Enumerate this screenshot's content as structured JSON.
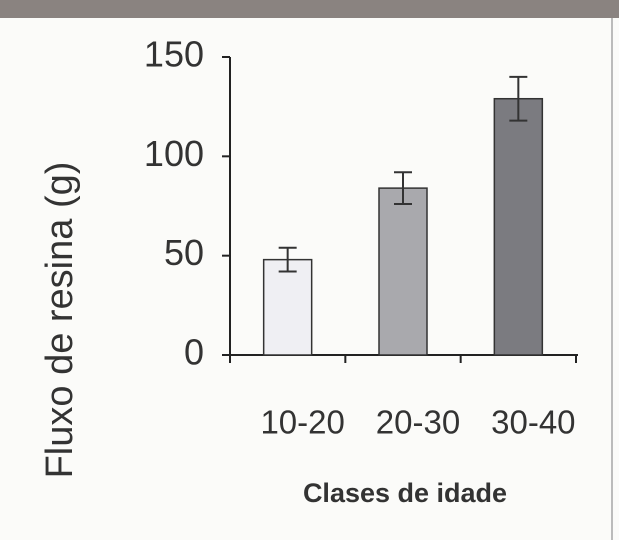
{
  "chart_data": {
    "type": "bar",
    "categories": [
      "10-20",
      "20-30",
      "30-40"
    ],
    "values": [
      48,
      84,
      129
    ],
    "errors": [
      6,
      8,
      11
    ],
    "colors": [
      "#efeff3",
      "#a9a9ad",
      "#7b7b80"
    ],
    "ylabel": "Fluxo de resina (g)",
    "xlabel": "Clases de idade",
    "ylim": [
      0,
      150
    ],
    "yticks": [
      0,
      50,
      100,
      150
    ]
  }
}
